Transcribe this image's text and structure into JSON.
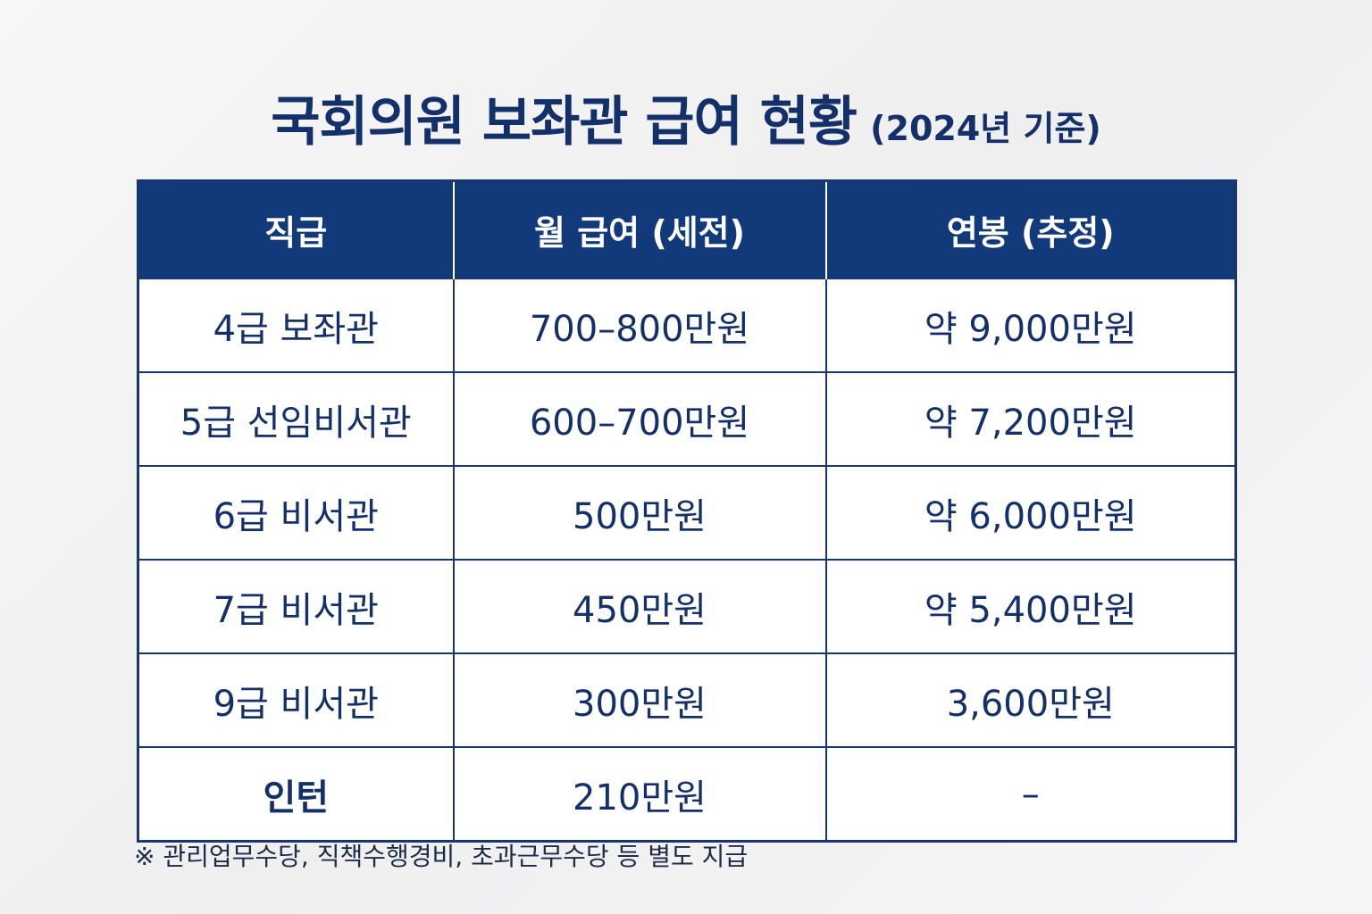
{
  "title": {
    "main": "국회의원 보좌관 급여 현황",
    "sub": "(2024년 기준)"
  },
  "table": {
    "headers": [
      "직급",
      "월 급여 (세전)",
      "연봉 (추정)"
    ],
    "rows": [
      {
        "rank": "4급 보좌관",
        "monthly": "700–800만원",
        "annual": "약 9,000만원"
      },
      {
        "rank": "5급 선임비서관",
        "monthly": "600–700만원",
        "annual": "약 7,200만원"
      },
      {
        "rank": "6급 비서관",
        "monthly": "500만원",
        "annual": "약 6,000만원"
      },
      {
        "rank": "7급 비서관",
        "monthly": "450만원",
        "annual": "약 5,400만원"
      },
      {
        "rank": "9급 비서관",
        "monthly": "300만원",
        "annual": "3,600만원"
      },
      {
        "rank": "인턴",
        "monthly": "210만원",
        "annual": "–"
      }
    ]
  },
  "footnote": "※ 관리업무수당, 직책수행경비, 초과근무수당 등 별도 지급",
  "colors": {
    "header_bg": "#123a7a",
    "text": "#14306a",
    "border": "#1a3670"
  }
}
